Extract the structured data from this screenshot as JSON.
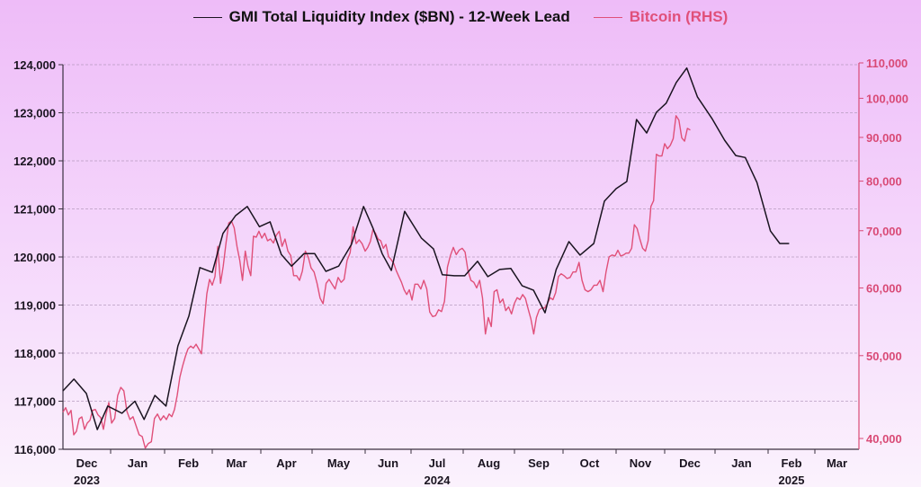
{
  "colors": {
    "gmi": "#1a1420",
    "bitcoin": "#e0507a",
    "right_axis": "#d94a76",
    "grid": "#b79cc0",
    "axis": "#3a3040"
  },
  "legend": {
    "gmi_label": "GMI Total Liquidity Index ($BN) - 12-Week Lead",
    "bitcoin_label": "Bitcoin (RHS)"
  },
  "chart_data": {
    "type": "line",
    "title": "",
    "xlabel": "",
    "ylabel": "GMI Total Liquidity Index ($BN)",
    "y2label": "Bitcoin (RHS)",
    "x_unit": "months since 2023-12-01",
    "xlim": [
      0,
      16
    ],
    "ylim": [
      116000,
      124000
    ],
    "y2lim": [
      38000,
      110000
    ],
    "y2_scale": "log",
    "grid": true,
    "legend_position": "top-center",
    "x_ticks": [
      {
        "pos": 0.5,
        "label": "Dec",
        "year": "2023"
      },
      {
        "pos": 1.5,
        "label": "Jan",
        "year": ""
      },
      {
        "pos": 2.5,
        "label": "Feb",
        "year": ""
      },
      {
        "pos": 3.5,
        "label": "Mar",
        "year": ""
      },
      {
        "pos": 4.5,
        "label": "Apr",
        "year": ""
      },
      {
        "pos": 5.5,
        "label": "May",
        "year": ""
      },
      {
        "pos": 6.5,
        "label": "Jun",
        "year": ""
      },
      {
        "pos": 7.5,
        "label": "Jul",
        "year": "2024"
      },
      {
        "pos": 8.5,
        "label": "Aug",
        "year": ""
      },
      {
        "pos": 9.5,
        "label": "Sep",
        "year": ""
      },
      {
        "pos": 10.5,
        "label": "Oct",
        "year": ""
      },
      {
        "pos": 11.5,
        "label": "Nov",
        "year": ""
      },
      {
        "pos": 12.5,
        "label": "Dec",
        "year": ""
      },
      {
        "pos": 13.5,
        "label": "Jan",
        "year": ""
      },
      {
        "pos": 14.5,
        "label": "Feb",
        "year": "2025"
      },
      {
        "pos": 15.5,
        "label": "Mar",
        "year": ""
      }
    ],
    "y_ticks": [
      {
        "value": 116000,
        "label": "116,000"
      },
      {
        "value": 117000,
        "label": "117,000"
      },
      {
        "value": 118000,
        "label": "118,000"
      },
      {
        "value": 119000,
        "label": "119,000"
      },
      {
        "value": 120000,
        "label": "120,000"
      },
      {
        "value": 121000,
        "label": "121,000"
      },
      {
        "value": 122000,
        "label": "122,000"
      },
      {
        "value": 123000,
        "label": "123,000"
      },
      {
        "value": 124000,
        "label": "124,000"
      }
    ],
    "y2_ticks": [
      {
        "value": 40000,
        "label": "40,000"
      },
      {
        "value": 50000,
        "label": "50,000"
      },
      {
        "value": 60000,
        "label": "60,000"
      },
      {
        "value": 70000,
        "label": "70,000"
      },
      {
        "value": 80000,
        "label": "80,000"
      },
      {
        "value": 90000,
        "label": "90,000"
      },
      {
        "value": 100000,
        "label": "100,000"
      },
      {
        "value": 110000,
        "label": "110,000"
      }
    ],
    "series": [
      {
        "name": "GMI Total Liquidity Index ($BN) - 12-Week Lead",
        "axis": "left",
        "x": [
          0.0,
          0.23,
          0.49,
          0.72,
          0.94,
          1.21,
          1.45,
          1.62,
          1.82,
          2.03,
          2.28,
          2.51,
          2.74,
          3.0,
          3.22,
          3.48,
          3.72,
          3.97,
          4.18,
          4.4,
          4.6,
          4.84,
          5.05,
          5.26,
          5.5,
          5.74,
          5.97,
          6.17,
          6.37,
          6.57,
          6.86,
          7.2,
          7.43,
          7.6,
          7.83,
          8.03,
          8.28,
          8.48,
          8.71,
          8.93,
          9.16,
          9.39,
          9.63,
          9.86,
          10.11,
          10.32,
          10.58,
          10.78,
          11.0,
          11.22,
          11.42,
          11.63,
          11.83,
          12.03,
          12.23,
          12.44,
          12.65,
          12.94,
          13.18,
          13.39,
          13.57,
          13.79,
          14.05,
          14.25,
          14.45
        ],
        "values": [
          117215,
          117460,
          117160,
          116410,
          116900,
          116750,
          117000,
          116620,
          117120,
          116900,
          118150,
          118770,
          119780,
          119680,
          120490,
          120860,
          121050,
          120630,
          120730,
          120050,
          119810,
          120070,
          120070,
          119700,
          119810,
          120260,
          121050,
          120600,
          120070,
          119720,
          120950,
          120390,
          120170,
          119630,
          119610,
          119610,
          119910,
          119590,
          119740,
          119760,
          119400,
          119310,
          118840,
          119740,
          120320,
          120040,
          120280,
          121160,
          121420,
          121570,
          122860,
          122580,
          123010,
          123200,
          123630,
          123930,
          123330,
          122880,
          122430,
          122110,
          122070,
          121550,
          120540,
          120280,
          120280
        ]
      },
      {
        "name": "Bitcoin (RHS)",
        "axis": "right",
        "pixel_traced": true,
        "x_start": 0.0,
        "x_step": 0.0566,
        "values": [
          42940,
          43460,
          42620,
          43150,
          40400,
          40790,
          42190,
          42390,
          41000,
          41690,
          42000,
          43150,
          43250,
          42620,
          42310,
          41000,
          42720,
          44080,
          41690,
          42210,
          44920,
          45910,
          45470,
          43040,
          42100,
          42410,
          41390,
          40400,
          40210,
          38980,
          39460,
          39650,
          42210,
          42720,
          42000,
          42520,
          42100,
          42720,
          42410,
          43250,
          44920,
          47190,
          48610,
          49850,
          50900,
          51300,
          51030,
          51560,
          50900,
          50240,
          54720,
          59100,
          61400,
          60460,
          61870,
          67100,
          60760,
          63630,
          67730,
          71470,
          71840,
          70540,
          67100,
          64600,
          61240,
          66250,
          63630,
          62010,
          68970,
          68800,
          69890,
          68620,
          69520,
          68120,
          68450,
          67730,
          69150,
          69890,
          67100,
          68450,
          66250,
          65450,
          62010,
          62010,
          61240,
          62790,
          66250,
          65240,
          63310,
          62640,
          60760,
          58370,
          57510,
          60760,
          61400,
          60610,
          59840,
          61710,
          60920,
          61400,
          64600,
          65970,
          70720,
          67600,
          68300,
          67600,
          66250,
          66930,
          68000,
          70170,
          69520,
          68450,
          68120,
          66760,
          67460,
          65300,
          64780,
          64120,
          62850,
          61870,
          60920,
          59700,
          58950,
          59700,
          58080,
          60610,
          60610,
          59840,
          61240,
          59840,
          56220,
          55550,
          55680,
          56580,
          56300,
          57890,
          63470,
          65420,
          66930,
          65630,
          66440,
          66760,
          66100,
          62850,
          61240,
          60920,
          60010,
          61240,
          58370,
          53000,
          55400,
          54060,
          59400,
          59700,
          57630,
          58230,
          56450,
          57010,
          55940,
          57570,
          58450,
          58140,
          58950,
          58320,
          56710,
          55170,
          53000,
          55400,
          56580,
          56840,
          56840,
          57510,
          58450,
          58140,
          59250,
          61870,
          62330,
          62010,
          61550,
          61710,
          62640,
          62640,
          64280,
          61240,
          59700,
          59400,
          59700,
          60450,
          60450,
          61240,
          59400,
          62640,
          65240,
          65570,
          65400,
          66420,
          65400,
          65570,
          65900,
          65900,
          66760,
          71140,
          70410,
          68450,
          66760,
          66250,
          68120,
          74720,
          75900,
          86000,
          85600,
          85600,
          88500,
          87300,
          88100,
          89700,
          95400,
          94300,
          89900,
          89100,
          92200,
          91800
        ]
      }
    ]
  }
}
